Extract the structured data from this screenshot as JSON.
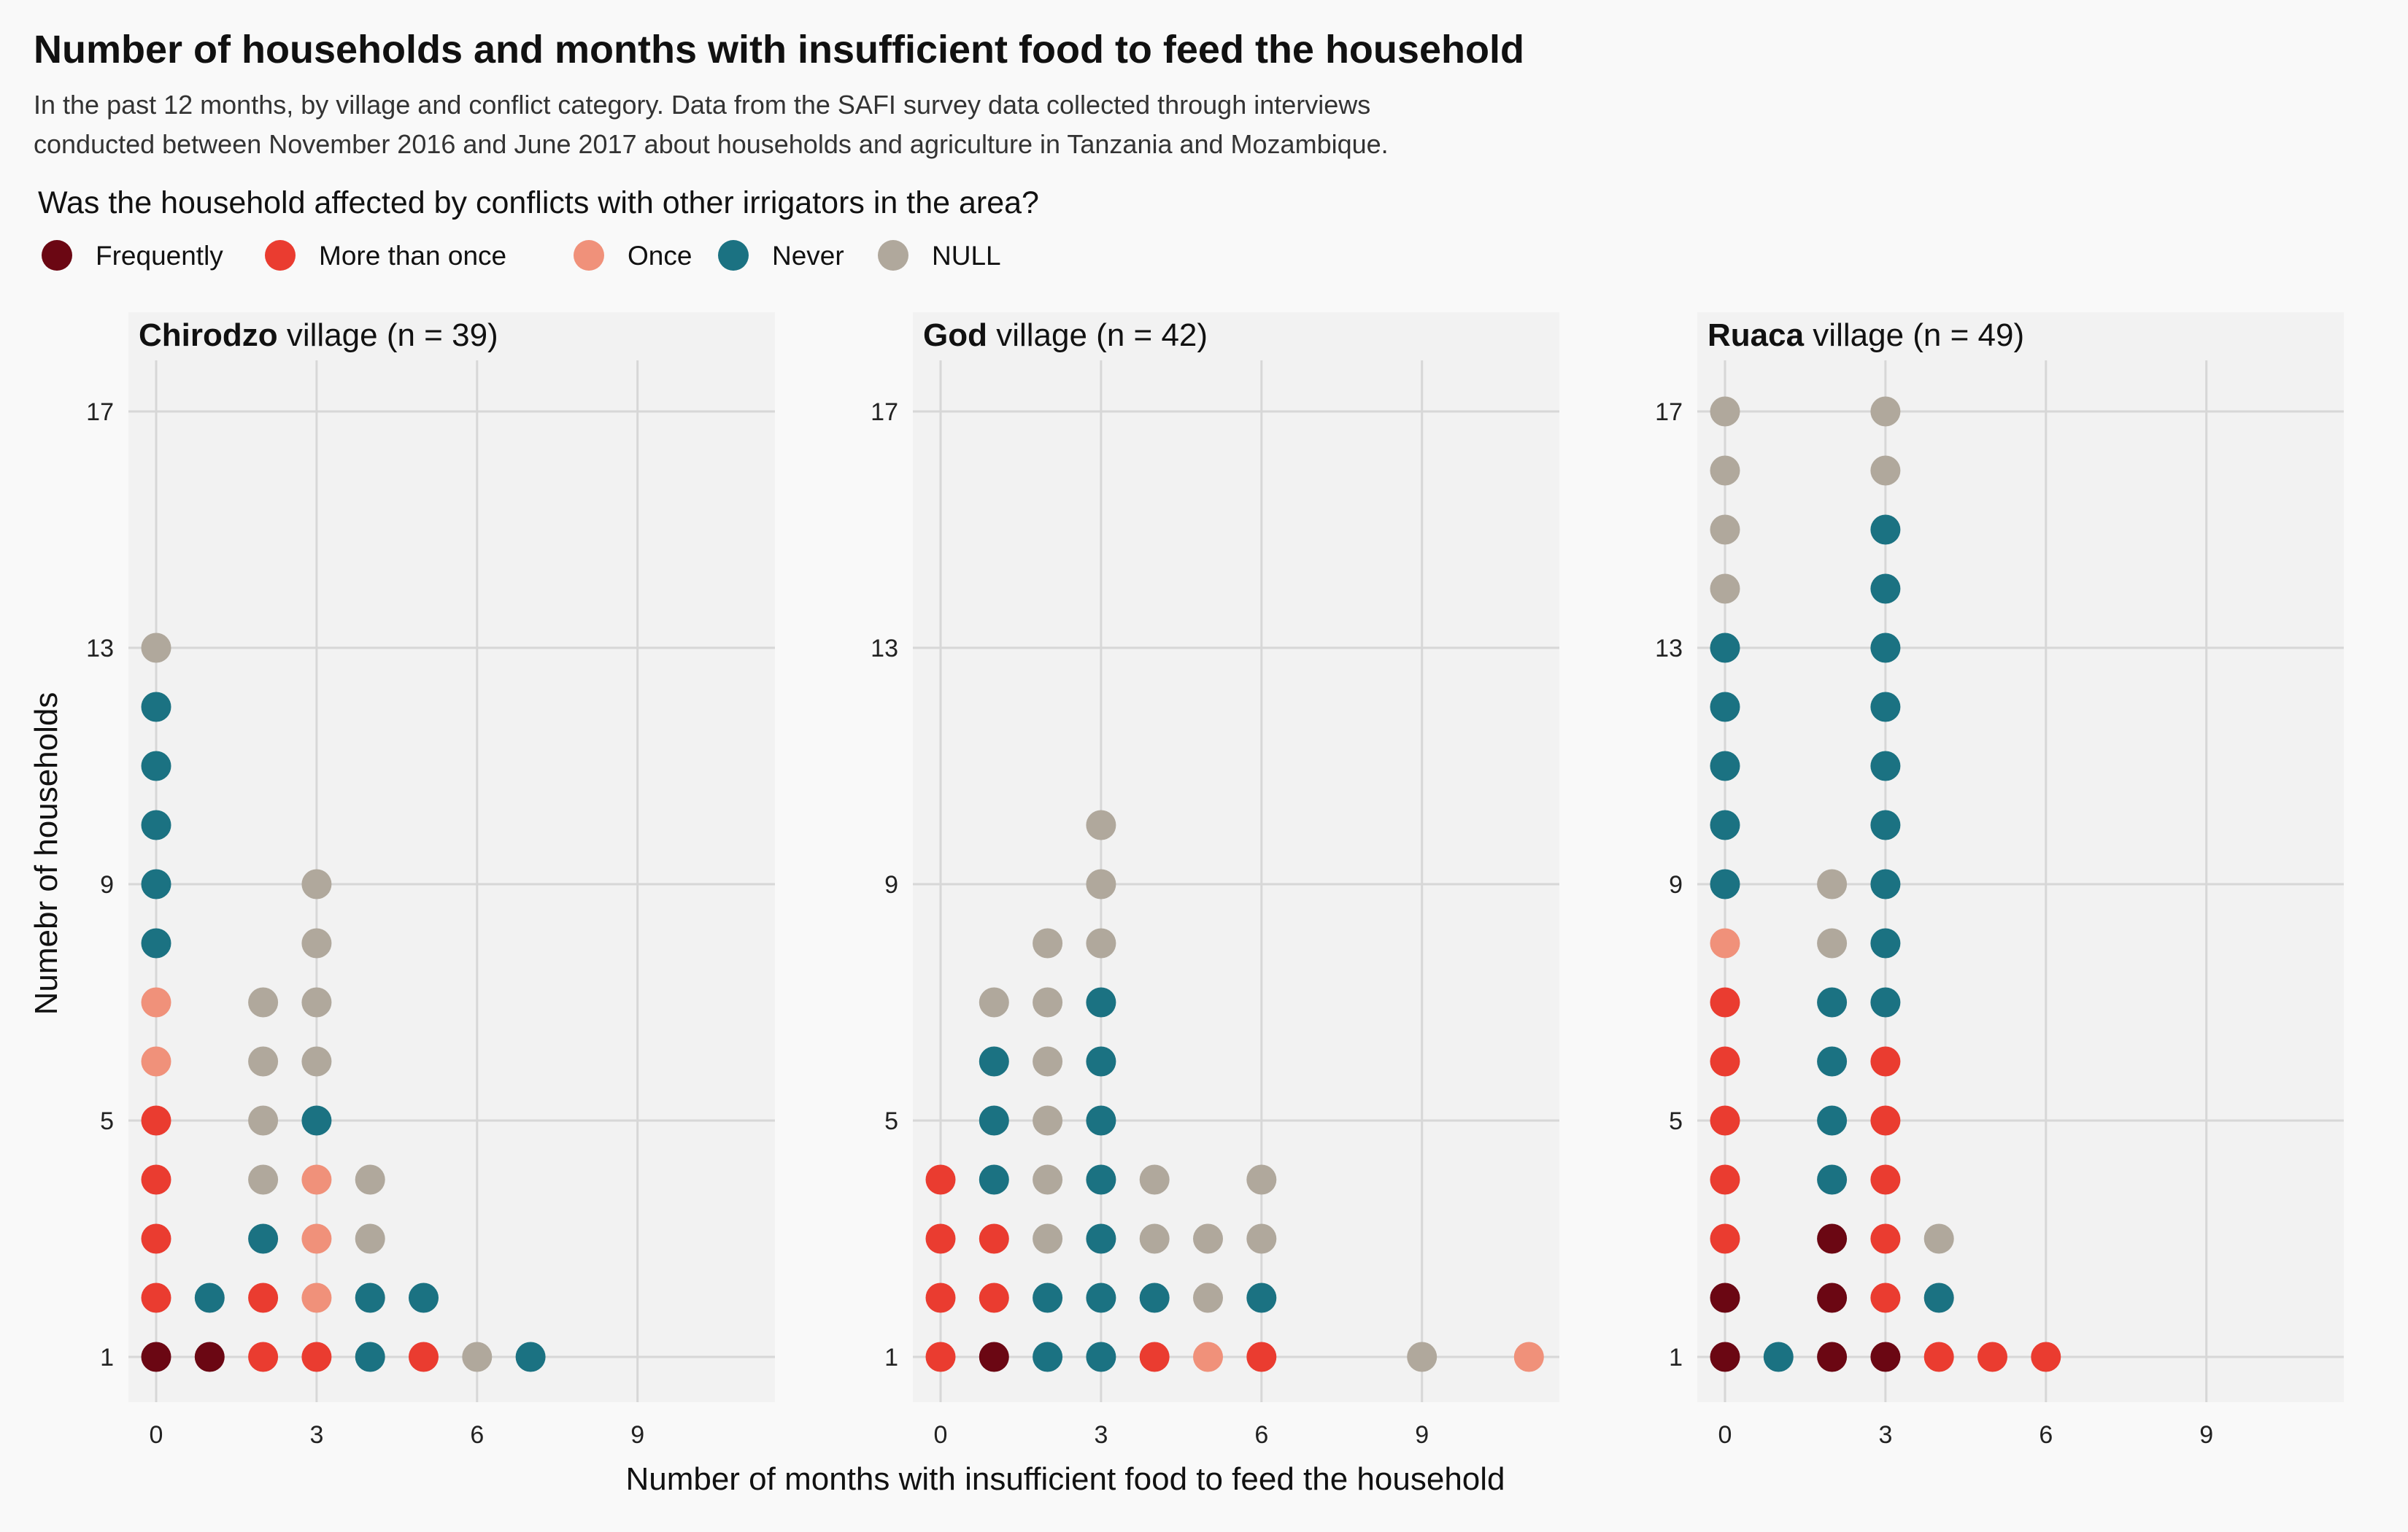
{
  "title": "Number of households and months with insufficient food to feed the household",
  "subtitle_lines": [
    "In the past 12 months, by village and conflict category. Data from the SAFI survey data collected through interviews",
    "conducted between November 2016 and June 2017 about households and agriculture in Tanzania and Mozambique."
  ],
  "legend": {
    "title": "Was the household affected by conflicts with other irrigators in the area?",
    "position": "top-left",
    "items": [
      {
        "key": "Frequently",
        "label": "Frequently",
        "color": "#6b0713"
      },
      {
        "key": "More than once",
        "label": "More than once",
        "color": "#ea3c30"
      },
      {
        "key": "Once",
        "label": "Once",
        "color": "#f0917a"
      },
      {
        "key": "Never",
        "label": "Never",
        "color": "#1b7282"
      },
      {
        "key": "NULL",
        "label": "NULL",
        "color": "#b0a89c"
      }
    ]
  },
  "chart_data": {
    "type": "scatter",
    "subtype": "stacked dot plot (faceted)",
    "xlabel": "Number of months with insufficient food to feed the household",
    "ylabel": "Numebr of households",
    "xlim": [
      -0.5,
      11.5
    ],
    "ylim": [
      0.5,
      17.5
    ],
    "x_ticks": [
      0,
      3,
      6,
      9
    ],
    "y_ticks": [
      1,
      5,
      9,
      13,
      17
    ],
    "grid": true,
    "panels": [
      {
        "village": "Chirodzo",
        "title_bold": "Chirodzo",
        "title_rest": " village (n = 39)",
        "stacks": [
          {
            "x": 0,
            "order": [
              "Frequently",
              "More than once",
              "More than once",
              "More than once",
              "More than once",
              "Once",
              "Once",
              "Never",
              "Never",
              "Never",
              "Never",
              "Never",
              "NULL"
            ]
          },
          {
            "x": 1,
            "order": [
              "Frequently",
              "Never"
            ]
          },
          {
            "x": 2,
            "order": [
              "More than once",
              "More than once",
              "Never",
              "NULL",
              "NULL",
              "NULL",
              "NULL"
            ]
          },
          {
            "x": 3,
            "order": [
              "More than once",
              "Once",
              "Once",
              "Once",
              "Never",
              "NULL",
              "NULL",
              "NULL",
              "NULL"
            ]
          },
          {
            "x": 4,
            "order": [
              "Never",
              "Never",
              "NULL",
              "NULL"
            ]
          },
          {
            "x": 5,
            "order": [
              "More than once",
              "Never"
            ]
          },
          {
            "x": 6,
            "order": [
              "NULL"
            ]
          },
          {
            "x": 7,
            "order": [
              "Never"
            ]
          }
        ]
      },
      {
        "village": "God",
        "title_bold": "God",
        "title_rest": " village (n = 42)",
        "stacks": [
          {
            "x": 0,
            "order": [
              "More than once",
              "More than once",
              "More than once",
              "More than once"
            ]
          },
          {
            "x": 1,
            "order": [
              "Frequently",
              "More than once",
              "More than once",
              "Never",
              "Never",
              "Never",
              "NULL"
            ]
          },
          {
            "x": 2,
            "order": [
              "Never",
              "Never",
              "NULL",
              "NULL",
              "NULL",
              "NULL",
              "NULL",
              "NULL"
            ]
          },
          {
            "x": 3,
            "order": [
              "Never",
              "Never",
              "Never",
              "Never",
              "Never",
              "Never",
              "Never",
              "NULL",
              "NULL",
              "NULL"
            ]
          },
          {
            "x": 4,
            "order": [
              "More than once",
              "Never",
              "NULL",
              "NULL"
            ]
          },
          {
            "x": 5,
            "order": [
              "Once",
              "NULL",
              "NULL"
            ]
          },
          {
            "x": 6,
            "order": [
              "More than once",
              "Never",
              "NULL",
              "NULL"
            ]
          },
          {
            "x": 9,
            "order": [
              "NULL"
            ]
          },
          {
            "x": 11,
            "order": [
              "Once"
            ]
          }
        ]
      },
      {
        "village": "Ruaca",
        "title_bold": "Ruaca",
        "title_rest": " village (n = 49)",
        "stacks": [
          {
            "x": 0,
            "order": [
              "Frequently",
              "Frequently",
              "More than once",
              "More than once",
              "More than once",
              "More than once",
              "More than once",
              "Once",
              "Never",
              "Never",
              "Never",
              "Never",
              "Never",
              "NULL",
              "NULL",
              "NULL",
              "NULL"
            ]
          },
          {
            "x": 1,
            "order": [
              "Never"
            ]
          },
          {
            "x": 2,
            "order": [
              "Frequently",
              "Frequently",
              "Frequently",
              "Never",
              "Never",
              "Never",
              "Never",
              "NULL",
              "NULL"
            ]
          },
          {
            "x": 3,
            "order": [
              "Frequently",
              "More than once",
              "More than once",
              "More than once",
              "More than once",
              "More than once",
              "Never",
              "Never",
              "Never",
              "Never",
              "Never",
              "Never",
              "Never",
              "Never",
              "Never",
              "NULL",
              "NULL"
            ]
          },
          {
            "x": 4,
            "order": [
              "More than once",
              "Never",
              "NULL"
            ]
          },
          {
            "x": 5,
            "order": [
              "More than once"
            ]
          },
          {
            "x": 6,
            "order": [
              "More than once"
            ]
          }
        ]
      }
    ]
  }
}
